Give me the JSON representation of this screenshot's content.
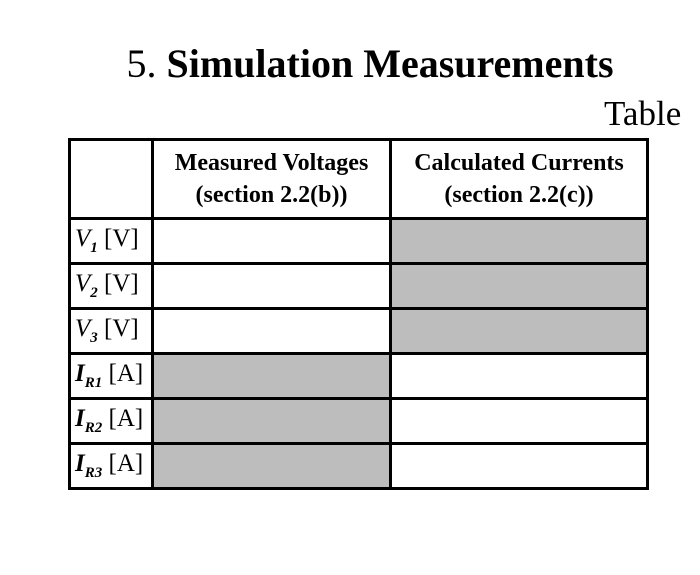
{
  "heading": {
    "number": "5.",
    "title": "Simulation Measurements"
  },
  "caption": "Table",
  "table": {
    "columns": [
      {
        "line1": "Measured Voltages",
        "line2": "(section 2.2(b))"
      },
      {
        "line1": "Calculated Currents",
        "line2": "(section 2.2(c))"
      }
    ],
    "rows": [
      {
        "symbol": "V",
        "subscript": "1",
        "unit": "[V]"
      },
      {
        "symbol": "V",
        "subscript": "2",
        "unit": "[V]"
      },
      {
        "symbol": "V",
        "subscript": "3",
        "unit": "[V]"
      },
      {
        "symbol": "I",
        "subscript": "R1",
        "unit": "[A]"
      },
      {
        "symbol": "I",
        "subscript": "R2",
        "unit": "[A]"
      },
      {
        "symbol": "I",
        "subscript": "R3",
        "unit": "[A]"
      }
    ]
  }
}
